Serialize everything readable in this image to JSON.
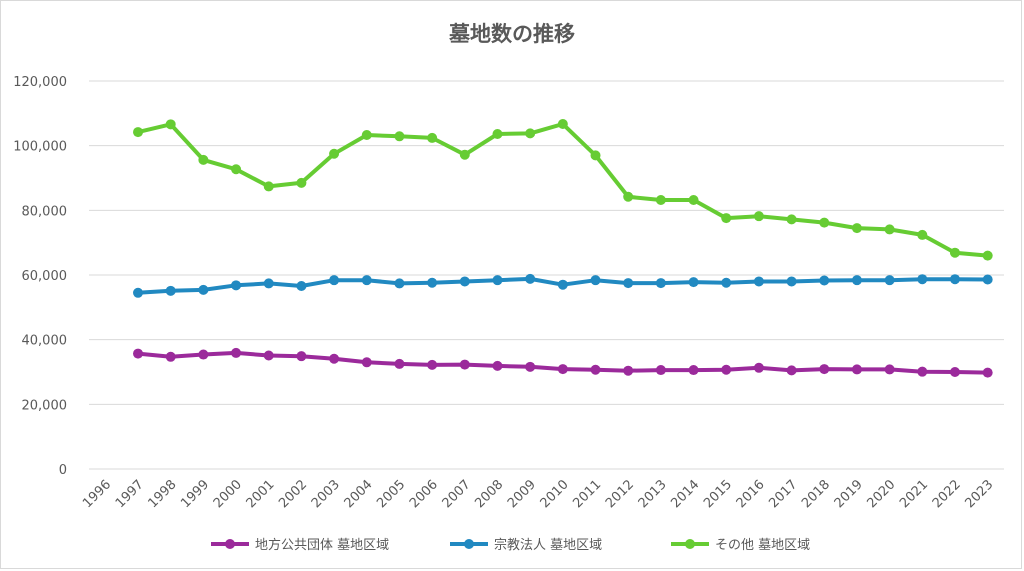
{
  "chart_data": {
    "type": "line",
    "title": "墓地数の推移",
    "xlabel": "",
    "ylabel": "",
    "ylim": [
      0,
      120000
    ],
    "yticks": [
      0,
      20000,
      40000,
      60000,
      80000,
      100000,
      120000
    ],
    "ytick_labels": [
      "0",
      "20,000",
      "40,000",
      "60,000",
      "80,000",
      "100,000",
      "120,000"
    ],
    "categories": [
      "1996",
      "1997",
      "1998",
      "1999",
      "2000",
      "2001",
      "2002",
      "2003",
      "2004",
      "2005",
      "2006",
      "2007",
      "2008",
      "2009",
      "2010",
      "2011",
      "2012",
      "2013",
      "2014",
      "2015",
      "2016",
      "2017",
      "2018",
      "2019",
      "2020",
      "2021",
      "2022",
      "2023"
    ],
    "grid": true,
    "legend_position": "bottom",
    "series": [
      {
        "name": "地方公共団体 墓地区域",
        "color": "#9B2A9B",
        "values": [
          null,
          35700,
          34700,
          35400,
          35900,
          35100,
          34900,
          34100,
          33000,
          32500,
          32200,
          32300,
          31900,
          31600,
          30900,
          30700,
          30400,
          30600,
          30600,
          30700,
          31300,
          30500,
          30900,
          30800,
          30800,
          30100,
          30000,
          29800
        ]
      },
      {
        "name": "宗教法人 墓地区域",
        "color": "#2189C1",
        "values": [
          null,
          54500,
          55100,
          55400,
          56800,
          57400,
          56600,
          58400,
          58400,
          57400,
          57600,
          58000,
          58400,
          58800,
          57000,
          58400,
          57500,
          57500,
          57800,
          57600,
          58000,
          58000,
          58300,
          58400,
          58400,
          58700,
          58700,
          58600
        ]
      },
      {
        "name": "その他 墓地区域",
        "color": "#66CC33",
        "values": [
          null,
          104200,
          106600,
          95600,
          92700,
          87400,
          88500,
          97500,
          103300,
          102900,
          102400,
          97200,
          103600,
          103800,
          106700,
          97000,
          84200,
          83200,
          83200,
          77600,
          78200,
          77200,
          76200,
          74500,
          74100,
          72400,
          66900,
          66000
        ]
      }
    ]
  }
}
